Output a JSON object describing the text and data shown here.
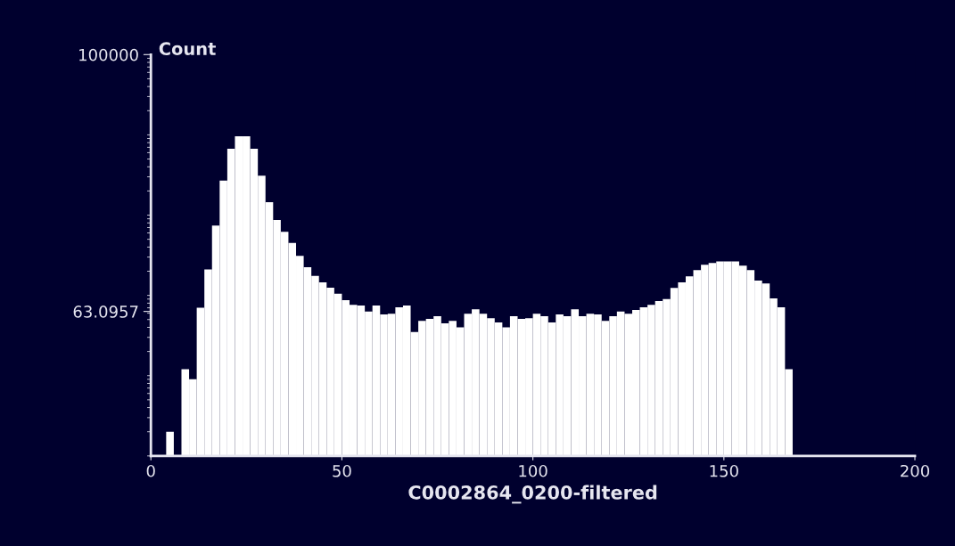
{
  "chart_data": {
    "type": "histogram",
    "xlabel": "C0002864_0200-filtered",
    "ylabel": "Count",
    "bins": [
      0,
      2,
      4,
      6,
      8,
      10,
      12,
      14,
      16,
      18,
      20,
      22,
      24,
      26,
      28,
      30,
      32,
      34,
      36,
      38,
      40,
      42,
      44,
      46,
      48,
      50,
      52,
      54,
      56,
      58,
      60,
      62,
      64,
      66,
      68,
      70,
      72,
      74,
      76,
      78,
      80,
      82,
      84,
      86,
      88,
      90,
      92,
      94,
      96,
      98,
      100,
      102,
      104,
      106,
      108,
      110,
      112,
      114,
      116,
      118,
      120,
      122,
      124,
      126,
      128,
      130,
      132,
      134,
      136,
      138,
      140,
      142,
      144,
      146,
      148,
      150,
      152,
      154,
      156,
      158,
      160,
      162,
      164,
      166,
      168
    ],
    "values": [
      null,
      null,
      2,
      null,
      12,
      9,
      70,
      210,
      740,
      2700,
      6700,
      9600,
      9600,
      6700,
      3100,
      1450,
      870,
      620,
      450,
      310,
      225,
      175,
      145,
      125,
      105,
      87,
      76,
      75,
      63,
      75,
      58,
      59,
      71,
      75,
      35,
      48,
      51,
      55,
      45,
      48,
      40,
      59,
      67,
      59,
      52,
      46,
      40,
      55,
      51,
      52,
      59,
      55,
      46,
      58,
      55,
      67,
      55,
      59,
      58,
      48,
      55,
      63,
      59,
      66,
      71,
      76,
      85,
      90,
      124,
      145,
      173,
      207,
      240,
      254,
      265,
      265,
      265,
      235,
      207,
      153,
      141,
      92,
      71,
      12
    ],
    "color": "#ffffff",
    "log": "y",
    "xlim": [
      0,
      200
    ],
    "xticks": [
      0,
      50,
      100,
      150,
      200
    ],
    "ylim": [
      1,
      100000
    ],
    "yticks": [
      63.0957,
      100000
    ],
    "grid": false
  }
}
